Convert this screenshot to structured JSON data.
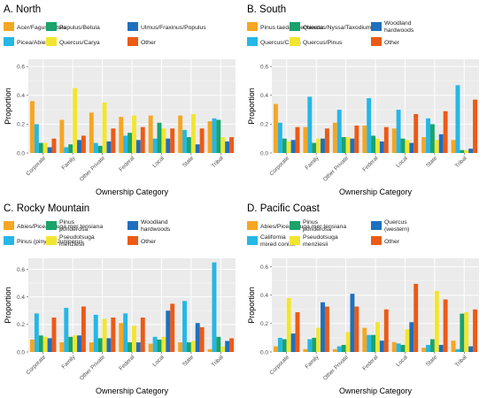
{
  "ylabel": "Proportion",
  "xlabel": "Ownership Category",
  "categories": [
    "Corporate",
    "Family",
    "Other Private",
    "Federal",
    "Local",
    "State",
    "Tribal"
  ],
  "yticks": [
    "0.0",
    "0.2",
    "0.4",
    "0.6"
  ],
  "colors": [
    "#f5a623",
    "#25b7e6",
    "#1aa36b",
    "#f2e530",
    "#1f6fbf",
    "#ec5a16"
  ],
  "chart_data": [
    {
      "type": "bar",
      "title": "A. North",
      "ylim": [
        0,
        0.65
      ],
      "categories": [
        "Corporate",
        "Family",
        "Other Private",
        "Federal",
        "Local",
        "State",
        "Tribal"
      ],
      "legend": [
        "Acer/Fagus/Betula",
        "Picea/Abies",
        "Populus/Betula",
        "Quercus/Carya",
        "Ulmus/Fraxinus/Populus",
        "Other"
      ],
      "series": [
        {
          "name": "Acer/Fagus/Betula",
          "values": [
            0.36,
            0.23,
            0.28,
            0.25,
            0.26,
            0.26,
            0.22
          ]
        },
        {
          "name": "Picea/Abies",
          "values": [
            0.2,
            0.04,
            0.07,
            0.12,
            0.1,
            0.16,
            0.24
          ]
        },
        {
          "name": "Populus/Betula",
          "values": [
            0.07,
            0.06,
            0.05,
            0.14,
            0.21,
            0.11,
            0.23
          ]
        },
        {
          "name": "Quercus/Carya",
          "values": [
            0.07,
            0.45,
            0.35,
            0.26,
            0.17,
            0.27,
            0.11
          ]
        },
        {
          "name": "Ulmus/Fraxinus/Populus",
          "values": [
            0.04,
            0.09,
            0.08,
            0.09,
            0.1,
            0.06,
            0.08
          ]
        },
        {
          "name": "Other",
          "values": [
            0.1,
            0.12,
            0.17,
            0.18,
            0.17,
            0.17,
            0.11
          ]
        }
      ]
    },
    {
      "type": "bar",
      "title": "B. South",
      "ylim": [
        0,
        0.65
      ],
      "categories": [
        "Corporate",
        "Family",
        "Other Private",
        "Federal",
        "Local",
        "State",
        "Tribal"
      ],
      "legend": [
        "Pinus taeda/P. echinata",
        "Quercus/Carya",
        "Quercus/Nyssa/Taxodium",
        "Quercus/Pinus",
        "Woodland hardwoods",
        "Other"
      ],
      "series": [
        {
          "name": "Pinus taeda/P. echinata",
          "values": [
            0.34,
            0.18,
            0.21,
            0.19,
            0.17,
            0.11,
            0.09
          ]
        },
        {
          "name": "Quercus/Carya",
          "values": [
            0.21,
            0.39,
            0.3,
            0.38,
            0.3,
            0.24,
            0.47
          ]
        },
        {
          "name": "Quercus/Nyssa/Taxodium",
          "values": [
            0.1,
            0.07,
            0.11,
            0.12,
            0.1,
            0.2,
            0.02
          ]
        },
        {
          "name": "Quercus/Pinus",
          "values": [
            0.08,
            0.1,
            0.11,
            0.1,
            0.09,
            0.09,
            0.02
          ]
        },
        {
          "name": "Woodland hardwoods",
          "values": [
            0.09,
            0.1,
            0.1,
            0.08,
            0.07,
            0.13,
            0.03
          ]
        },
        {
          "name": "Other",
          "values": [
            0.18,
            0.17,
            0.19,
            0.18,
            0.27,
            0.29,
            0.37
          ]
        }
      ]
    },
    {
      "type": "bar",
      "title": "C. Rocky Mountain",
      "ylim": [
        0,
        0.68
      ],
      "categories": [
        "Corporate",
        "Family",
        "Other Private",
        "Federal",
        "Local",
        "State",
        "Tribal"
      ],
      "legend": [
        "Abies/Picea/Tsuga mer tensiana",
        "Pinus (pinyon)/Juniperus",
        "Pinus ponderosa",
        "Pseudotsuga menziesii",
        "Woodland hardwoods",
        "Other"
      ],
      "series": [
        {
          "name": "Abies/Picea/Tsuga mer tensiana",
          "values": [
            0.09,
            0.07,
            0.07,
            0.21,
            0.06,
            0.07,
            0.02
          ]
        },
        {
          "name": "Pinus (pinyon)/Juniperus",
          "values": [
            0.28,
            0.32,
            0.27,
            0.28,
            0.11,
            0.37,
            0.65
          ]
        },
        {
          "name": "Pinus ponderosa",
          "values": [
            0.12,
            0.11,
            0.1,
            0.07,
            0.09,
            0.07,
            0.11
          ]
        },
        {
          "name": "Pseudotsuga menziesii",
          "values": [
            0.11,
            0.12,
            0.24,
            0.19,
            0.11,
            0.08,
            0.04
          ]
        },
        {
          "name": "Woodland hardwoods",
          "values": [
            0.1,
            0.12,
            0.1,
            0.07,
            0.3,
            0.21,
            0.08
          ]
        },
        {
          "name": "Other",
          "values": [
            0.25,
            0.33,
            0.25,
            0.25,
            0.35,
            0.18,
            0.1
          ]
        }
      ]
    },
    {
      "type": "bar",
      "title": "D. Pacific Coast",
      "ylim": [
        0,
        0.66
      ],
      "categories": [
        "Corporate",
        "Family",
        "Other Private",
        "Federal",
        "Local",
        "State",
        "Tribal"
      ],
      "legend": [
        "Abies/Picea/Tsuga mer tensiana",
        "California mixed conifer",
        "Pinus ponderosa",
        "Pseudotsuga menziesii",
        "Quercus (western)",
        "Other"
      ],
      "series": [
        {
          "name": "Abies/Picea/Tsuga mer tensiana",
          "values": [
            0.04,
            0.02,
            0.02,
            0.17,
            0.07,
            0.03,
            0.08
          ]
        },
        {
          "name": "California mixed conifer",
          "values": [
            0.1,
            0.09,
            0.04,
            0.12,
            0.06,
            0.05,
            0.02
          ]
        },
        {
          "name": "Pinus ponderosa",
          "values": [
            0.09,
            0.1,
            0.05,
            0.12,
            0.05,
            0.09,
            0.27
          ]
        },
        {
          "name": "Pseudotsuga menziesii",
          "values": [
            0.38,
            0.17,
            0.14,
            0.21,
            0.16,
            0.43,
            0.28
          ]
        },
        {
          "name": "Quercus (western)",
          "values": [
            0.13,
            0.35,
            0.41,
            0.08,
            0.21,
            0.05,
            0.04
          ]
        },
        {
          "name": "Other",
          "values": [
            0.28,
            0.32,
            0.32,
            0.3,
            0.48,
            0.37,
            0.3
          ]
        }
      ]
    }
  ]
}
